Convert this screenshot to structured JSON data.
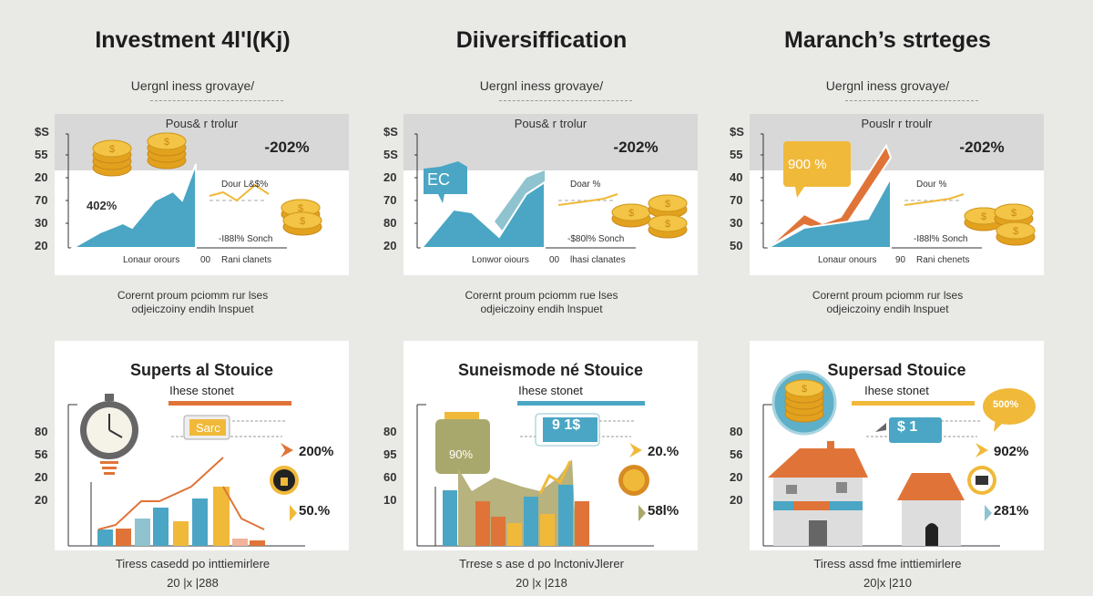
{
  "colors": {
    "background": "#e9e9e6",
    "band": "#d8d8d8",
    "teal": "#4aa6c4",
    "orange": "#e07438",
    "gold": "#f0b93a",
    "sand": "#a9a86c"
  },
  "columns": [
    {
      "title": "Investment 4l'l(Kj)",
      "subtitle": "Uergnl iness grovaye/",
      "top_panel": {
        "title": "Pous& r trolur",
        "y_labels": [
          "$S",
          "55",
          "20",
          "70",
          "30",
          "20"
        ],
        "big_percent": "-202%",
        "area_label": "402%",
        "mini_title": "Dour L&$%",
        "mini_caption": "-I88l% Sonch",
        "x_labels": [
          "Lonaur orours",
          "00",
          "Rani clanets"
        ]
      },
      "caption": [
        "Corernt proum pciomm rur lses",
        "odjeiczoiny endih lnspuet"
      ],
      "bottom_panel": {
        "title": "Superts al Stouice",
        "subtitle": "Ihese stonet",
        "y_labels": [
          "80",
          "56",
          "20",
          "20"
        ],
        "tag": "Sarc",
        "percent_1": "200%",
        "percent_2": "50.%",
        "icon": "clock-icon"
      },
      "footer": [
        "Tiress casedd po inttiemirlere",
        "20 |x |288"
      ]
    },
    {
      "title": "Diiversiffication",
      "subtitle": "Uergnl iness grovaye/",
      "top_panel": {
        "title": "Pous& r trolur",
        "y_labels": [
          "$S",
          "5S",
          "20",
          "70",
          "80",
          "20"
        ],
        "big_percent": "-202%",
        "area_label": "EC",
        "mini_title": "Doar %",
        "mini_caption": "-$80l% Sonch",
        "x_labels": [
          "Lonwor oiours",
          "00",
          "lhasi clanates"
        ]
      },
      "caption": [
        "Corernt proum pciomm rue lses",
        "odjeiczoiny endih lnspuet"
      ],
      "bottom_panel": {
        "title": "Suneismode né Stouice",
        "subtitle": "Ihese stonet",
        "y_labels": [
          "80",
          "95",
          "60",
          "10"
        ],
        "tag": "9 1$",
        "jar_label": "90%",
        "percent_1": "20.%",
        "percent_2": "58l%",
        "icon": "jar-icon"
      },
      "footer": [
        "Trrese s ase d po lnctonivJlerer",
        "20 |x |218"
      ]
    },
    {
      "title": "Maranch’s strteges",
      "subtitle": "Uergnl iness grovaye/",
      "top_panel": {
        "title": "Pouslr r troulr",
        "y_labels": [
          "$S",
          "55",
          "40",
          "70",
          "30",
          "50"
        ],
        "big_percent": "-202%",
        "area_label": "900 %",
        "mini_title": "Dour %",
        "mini_caption": "-I88l% Sonch",
        "x_labels": [
          "Lonaur onours",
          "90",
          "Rani chenets"
        ]
      },
      "caption": [
        "Corernt proum pciomm rur lses",
        "odjeiczoiny endih lnspuet"
      ],
      "bottom_panel": {
        "title": "Supersad Stouice",
        "subtitle": "Ihese stonet",
        "y_labels": [
          "80",
          "56",
          "20",
          "20"
        ],
        "tag": "$ 1",
        "bubble": "500%",
        "percent_1": "902%",
        "percent_2": "281%",
        "icon": "house-icon"
      },
      "footer": [
        "Tiress assd fme inttiemirlere",
        "20|x |210"
      ]
    }
  ]
}
